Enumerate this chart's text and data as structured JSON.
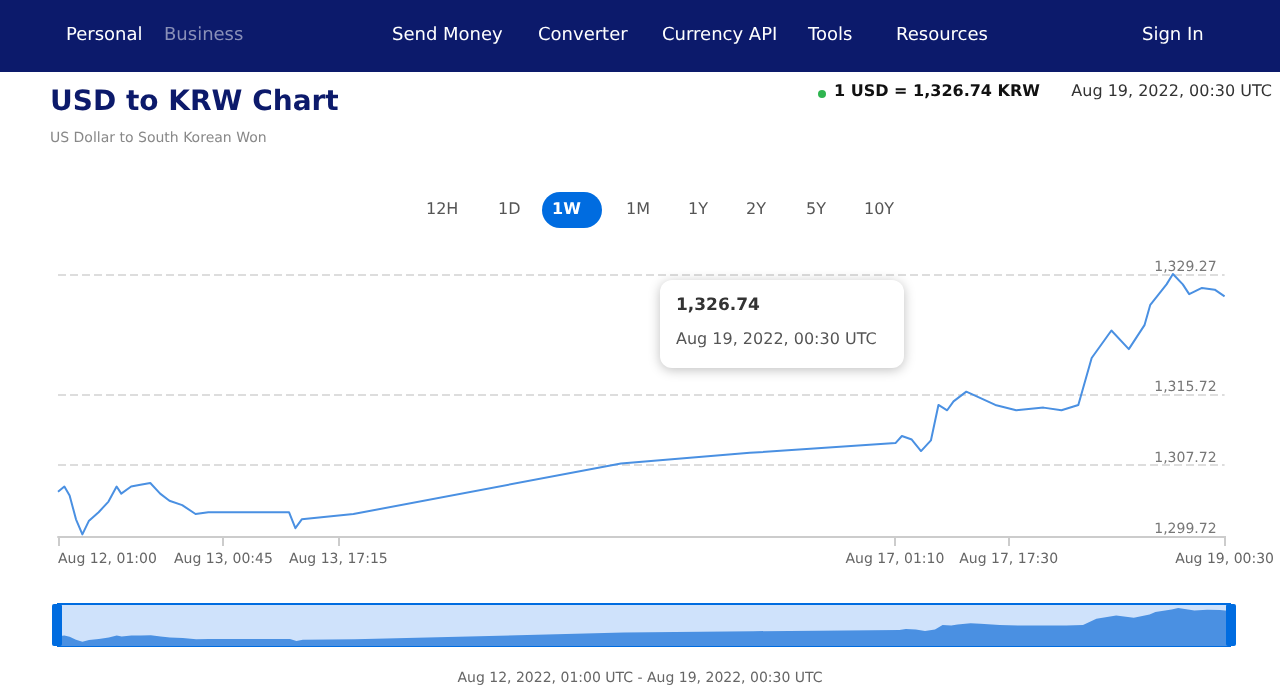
{
  "chart_data": {
    "type": "line",
    "title": "USD to KRW Chart",
    "subtitle": "US Dollar to South Korean Won",
    "annotations": [
      "Personal",
      "Business",
      "Send Money",
      "Converter",
      "Currency API",
      "Tools",
      "Resources",
      "Sign In",
      "1 USD = 1,326.74 KRW",
      "Aug 19, 2022, 00:30 UTC",
      "12H",
      "1D",
      "1W",
      "1M",
      "1Y",
      "2Y",
      "5Y",
      "10Y",
      "1,326.74",
      "Aug 19, 2022, 00:30 UTC",
      "Aug 12, 2022, 01:00 UTC - Aug 19, 2022, 00:30 UTC"
    ],
    "x": [
      "2022-08-12T01:00",
      "2022-08-12T01:55",
      "2022-08-12T02:40",
      "2022-08-12T03:35",
      "2022-08-12T04:30",
      "2022-08-12T05:25",
      "2022-08-12T06:50",
      "2022-08-12T08:15",
      "2022-08-12T09:25",
      "2022-08-12T10:05",
      "2022-08-12T11:30",
      "2022-08-12T12:50",
      "2022-08-12T14:15",
      "2022-08-12T15:40",
      "2022-08-12T17:00",
      "2022-08-12T18:50",
      "2022-08-12T20:45",
      "2022-08-12T22:35",
      "2022-08-13T10:10",
      "2022-08-13T11:05",
      "2022-08-13T12:00",
      "2022-08-13T19:25",
      "2022-08-15T09:50",
      "2022-08-16T04:20",
      "2022-08-17T01:15",
      "2022-08-17T02:10",
      "2022-08-17T03:35",
      "2022-08-17T04:55",
      "2022-08-17T06:20",
      "2022-08-17T07:25",
      "2022-08-17T08:40",
      "2022-08-17T09:35",
      "2022-08-17T11:25",
      "2022-08-17T12:50",
      "2022-08-17T15:35",
      "2022-08-17T18:35",
      "2022-08-17T22:30",
      "2022-08-18T01:05",
      "2022-08-18T03:30",
      "2022-08-18T05:25",
      "2022-08-18T08:15",
      "2022-08-18T10:45",
      "2022-08-18T13:00",
      "2022-08-18T13:50",
      "2022-08-18T16:10",
      "2022-08-18T17:05",
      "2022-08-18T18:30",
      "2022-08-18T19:25",
      "2022-08-18T21:15",
      "2022-08-18T23:05",
      "2022-08-19T00:30"
    ],
    "series": [
      {
        "color": "#4a90e2",
        "values": [
          1304.7,
          1305.3,
          1304.3,
          1301.6,
          1299.9,
          1301.4,
          1302.4,
          1303.6,
          1305.3,
          1304.5,
          1305.3,
          1305.5,
          1305.7,
          1304.5,
          1303.7,
          1303.2,
          1302.2,
          1302.4,
          1302.4,
          1300.6,
          1301.6,
          1302.2,
          1307.9,
          1309.1,
          1310.2,
          1311.0,
          1310.6,
          1309.3,
          1310.5,
          1314.5,
          1313.9,
          1314.9,
          1316.0,
          1315.5,
          1314.5,
          1313.9,
          1314.2,
          1313.9,
          1314.5,
          1319.8,
          1322.9,
          1320.8,
          1323.5,
          1325.8,
          1328.1,
          1329.27,
          1328.1,
          1327.0,
          1327.7,
          1327.5,
          1326.74
        ]
      }
    ],
    "xlim": [
      "2022-08-12T01:00",
      "2022-08-19T00:30"
    ],
    "xticks": [
      {
        "value": "2022-08-12T01:00",
        "label": "Aug 12, 01:00"
      },
      {
        "value": "2022-08-13T00:45",
        "label": "Aug 13, 00:45"
      },
      {
        "value": "2022-08-13T17:15",
        "label": "Aug 13, 17:15"
      },
      {
        "value": "2022-08-17T01:10",
        "label": "Aug 17, 01:10"
      },
      {
        "value": "2022-08-17T17:30",
        "label": "Aug 17, 17:30"
      },
      {
        "value": "2022-08-19T00:30",
        "label": "Aug 19, 00:30"
      }
    ],
    "ylim": [
      1299.72,
      1329.27
    ],
    "yticks": [
      {
        "value": 1299.72,
        "label": "1,299.72"
      },
      {
        "value": 1307.72,
        "label": "1,307.72"
      },
      {
        "value": 1315.72,
        "label": "1,315.72"
      },
      {
        "value": 1329.27,
        "label": "1,329.27"
      }
    ],
    "grid": "y",
    "marker": "none",
    "line_style": "solid"
  }
}
